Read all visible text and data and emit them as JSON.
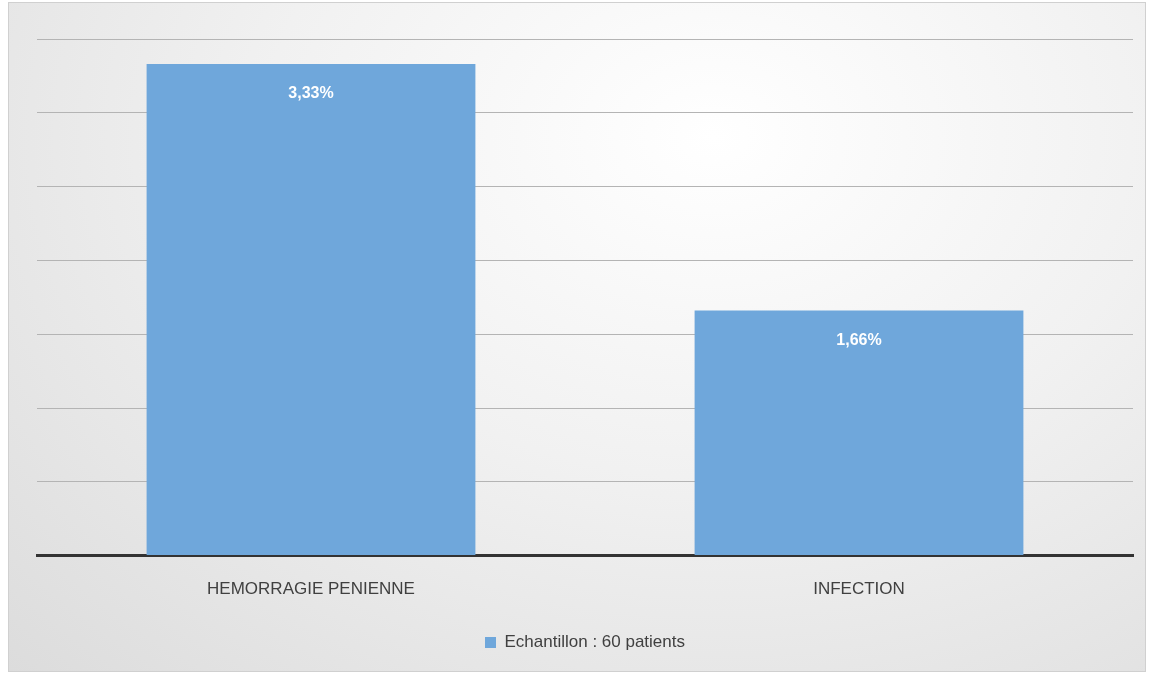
{
  "chart_data": {
    "type": "bar",
    "categories": [
      "HEMORRAGIE PENIENNE",
      "INFECTION"
    ],
    "series": [
      {
        "name": "Echantillon : 60 patients",
        "color": "#6fa7db",
        "values": [
          3.33,
          1.66
        ],
        "value_labels": [
          "3,33%",
          "1,66%"
        ]
      }
    ],
    "ylim": [
      0,
      3.5
    ],
    "yticks": [
      {
        "value": 0,
        "label": null
      },
      {
        "value": 0.5,
        "label": null
      },
      {
        "value": 1,
        "label": null
      },
      {
        "value": 1.5,
        "label": null
      },
      {
        "value": 2,
        "label": null
      },
      {
        "value": 2.5,
        "label": null
      },
      {
        "value": 3,
        "label": null
      },
      {
        "value": 3.5,
        "label": null
      }
    ],
    "tick_labels": "x",
    "grid": "y",
    "legend": "bottom"
  }
}
